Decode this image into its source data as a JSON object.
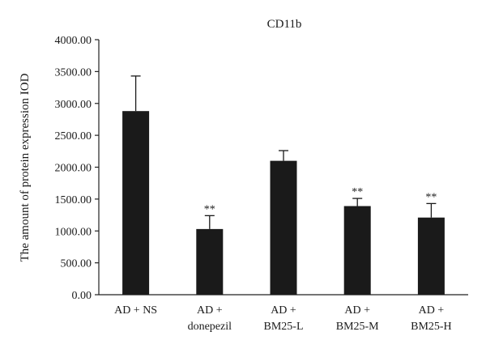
{
  "chart_data": {
    "type": "bar",
    "title": "CD11b",
    "ylabel": "The amount of protein expression IOD",
    "xlabel": "",
    "ylim": [
      0,
      4000
    ],
    "yticks": [
      "0.00",
      "500.00",
      "1000.00",
      "1500.00",
      "2000.00",
      "2500.00",
      "3000.00",
      "3500.00",
      "4000.00"
    ],
    "categories": [
      [
        "AD + NS"
      ],
      [
        "AD +",
        "donepezil"
      ],
      [
        "AD +",
        "BM25-L"
      ],
      [
        "AD +",
        "BM25-M"
      ],
      [
        "AD +",
        "BM25-H"
      ]
    ],
    "values": [
      2880,
      1030,
      2100,
      1390,
      1210
    ],
    "error_upper": [
      3430,
      1240,
      2260,
      1510,
      1430
    ],
    "significance": [
      "",
      "**",
      "",
      "**",
      "**"
    ],
    "grid": false,
    "colors": {
      "bar": "#1a1a1a",
      "text": "#1a1a1a"
    }
  }
}
